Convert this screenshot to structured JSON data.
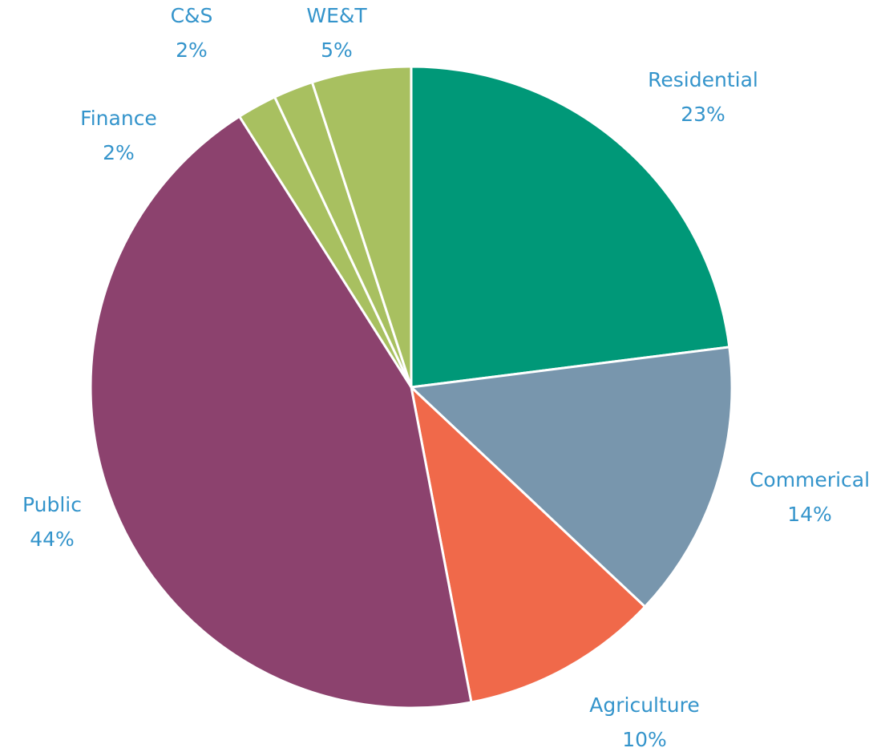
{
  "chart_data": {
    "type": "pie",
    "categories": [
      "Residential",
      "Commerical",
      "Agriculture",
      "Public",
      "Finance",
      "C&S",
      "WE&T"
    ],
    "values": [
      23,
      14,
      10,
      44,
      2,
      2,
      5
    ],
    "value_labels": [
      "23%",
      "14%",
      "10%",
      "44%",
      "2%",
      "2%",
      "5%"
    ],
    "colors": [
      "#009878",
      "#7896ad",
      "#f0694a",
      "#8c426e",
      "#a8c060",
      "#a8c060",
      "#a8c060"
    ],
    "label_color": "#3494cb"
  }
}
